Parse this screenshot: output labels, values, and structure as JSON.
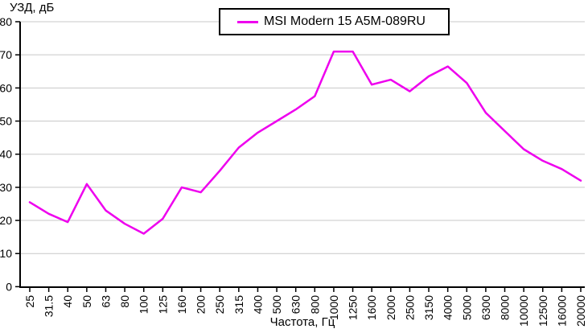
{
  "window": {
    "background_color": "#ffffff"
  },
  "chart_data": {
    "type": "line",
    "title": "",
    "ylabel": "УЗД, дБ",
    "xlabel": "Частота, Гц",
    "ylim": [
      0,
      80
    ],
    "y_ticks": [
      0,
      10,
      20,
      30,
      40,
      50,
      60,
      70,
      80
    ],
    "grid": "horizontal",
    "grid_color": "#c8c8c8",
    "axis_color": "#000000",
    "tick_label_color": "#000000",
    "legend_position": "top-center",
    "categories": [
      "25",
      "31.5",
      "40",
      "50",
      "63",
      "80",
      "100",
      "125",
      "160",
      "200",
      "250",
      "315",
      "400",
      "500",
      "630",
      "800",
      "1000",
      "1250",
      "1600",
      "2000",
      "2500",
      "3150",
      "4000",
      "5000",
      "6300",
      "8000",
      "10000",
      "12500",
      "16000",
      "20000"
    ],
    "series": [
      {
        "name": "MSI Modern 15 A5M-089RU",
        "color": "#ee00ee",
        "values": [
          25.5,
          22,
          19.5,
          31,
          23,
          19,
          16,
          20.5,
          30,
          28.5,
          35,
          42,
          46.5,
          50,
          53.5,
          57.5,
          71,
          71,
          61,
          62.5,
          59,
          63.5,
          66.5,
          61.5,
          52.5,
          47,
          41.5,
          38,
          35.5,
          32
        ]
      }
    ]
  }
}
